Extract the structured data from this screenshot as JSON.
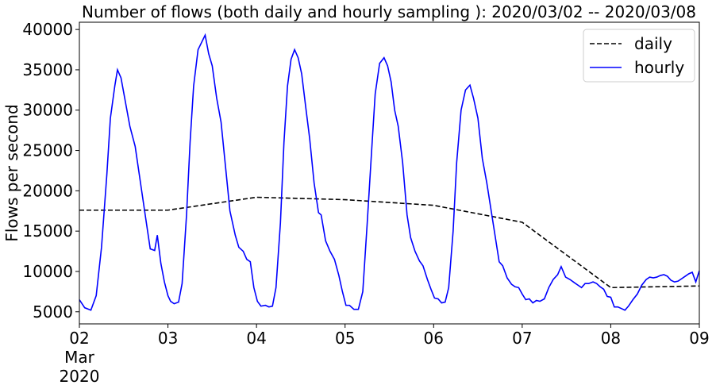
{
  "chart_data": {
    "type": "line",
    "title": "Number of flows (both daily and hourly sampling ): 2020/03/02 -- 2020/03/08",
    "y_label": "Flows per second",
    "xlim": [
      2,
      9
    ],
    "xticks": [
      {
        "value": 2,
        "label": "02"
      },
      {
        "value": 3,
        "label": "03"
      },
      {
        "value": 4,
        "label": "04"
      },
      {
        "value": 5,
        "label": "05"
      },
      {
        "value": 6,
        "label": "06"
      },
      {
        "value": 7,
        "label": "07"
      },
      {
        "value": 8,
        "label": "08"
      },
      {
        "value": 9,
        "label": "09"
      }
    ],
    "xtick_sublabels": [
      "Mar",
      "2020"
    ],
    "ylim": [
      3500,
      40900
    ],
    "yticks": [
      5000,
      10000,
      15000,
      20000,
      25000,
      30000,
      35000,
      40000
    ],
    "legend": "upper right",
    "series": [
      {
        "name": "daily",
        "color": "#000000",
        "linestyle": "dashed",
        "x": [
          2,
          3,
          4,
          5,
          6,
          7,
          8,
          9
        ],
        "values": [
          17600,
          17600,
          19200,
          18900,
          18200,
          16100,
          8000,
          8200
        ]
      },
      {
        "name": "hourly",
        "color": "#0000ff",
        "linestyle": "solid",
        "x": [
          2.0,
          2.06,
          2.13,
          2.19,
          2.25,
          2.31,
          2.35,
          2.4,
          2.43,
          2.47,
          2.52,
          2.57,
          2.63,
          2.69,
          2.75,
          2.8,
          2.85,
          2.88,
          2.92,
          2.96,
          3.0,
          3.03,
          3.07,
          3.12,
          3.16,
          3.21,
          3.25,
          3.29,
          3.34,
          3.42,
          3.46,
          3.5,
          3.55,
          3.6,
          3.65,
          3.7,
          3.76,
          3.8,
          3.85,
          3.89,
          3.93,
          3.97,
          4.01,
          4.05,
          4.1,
          4.14,
          4.18,
          4.22,
          4.27,
          4.31,
          4.35,
          4.39,
          4.43,
          4.47,
          4.51,
          4.56,
          4.6,
          4.65,
          4.7,
          4.73,
          4.78,
          4.83,
          4.88,
          4.93,
          4.97,
          5.01,
          5.05,
          5.1,
          5.15,
          5.2,
          5.25,
          5.3,
          5.34,
          5.39,
          5.44,
          5.48,
          5.52,
          5.56,
          5.6,
          5.65,
          5.7,
          5.74,
          5.79,
          5.84,
          5.88,
          5.93,
          5.97,
          6.01,
          6.05,
          6.09,
          6.13,
          6.17,
          6.22,
          6.26,
          6.31,
          6.36,
          6.41,
          6.45,
          6.5,
          6.55,
          6.6,
          6.65,
          6.7,
          6.74,
          6.78,
          6.83,
          6.88,
          6.92,
          6.96,
          7.0,
          7.04,
          7.08,
          7.12,
          7.16,
          7.2,
          7.25,
          7.3,
          7.35,
          7.4,
          7.44,
          7.49,
          7.54,
          7.59,
          7.63,
          7.67,
          7.71,
          7.75,
          7.8,
          7.84,
          7.88,
          7.92,
          7.96,
          8.0,
          8.04,
          8.08,
          8.12,
          8.16,
          8.2,
          8.25,
          8.3,
          8.35,
          8.4,
          8.44,
          8.48,
          8.52,
          8.56,
          8.6,
          8.64,
          8.68,
          8.72,
          8.76,
          8.8,
          8.84,
          8.88,
          8.92,
          8.96,
          9.0
        ],
        "values": [
          6500,
          5500,
          5200,
          7000,
          13000,
          22000,
          29000,
          33000,
          35000,
          34000,
          31000,
          28000,
          25500,
          21000,
          16500,
          12800,
          12600,
          14500,
          11000,
          8700,
          7000,
          6300,
          6000,
          6200,
          8500,
          17000,
          26000,
          33000,
          37500,
          39300,
          37000,
          35500,
          31500,
          28500,
          23000,
          17500,
          14500,
          13000,
          12500,
          11500,
          11200,
          8000,
          6300,
          5700,
          5800,
          5600,
          5700,
          8000,
          16000,
          26000,
          33000,
          36300,
          37500,
          36500,
          34500,
          30000,
          26500,
          21000,
          17300,
          17000,
          13800,
          12500,
          11500,
          9500,
          7500,
          5800,
          5800,
          5300,
          5300,
          7500,
          16000,
          25000,
          32000,
          35800,
          36500,
          35500,
          33500,
          30000,
          28000,
          23500,
          17000,
          14200,
          12500,
          11300,
          10700,
          9000,
          7800,
          6700,
          6600,
          6100,
          6200,
          8000,
          15000,
          23500,
          30000,
          32500,
          33100,
          31500,
          29000,
          24000,
          21000,
          17500,
          14000,
          11200,
          10700,
          9200,
          8400,
          8100,
          8000,
          7200,
          6500,
          6600,
          6100,
          6400,
          6300,
          6600,
          8000,
          9000,
          9600,
          10600,
          9300,
          9000,
          8600,
          8300,
          8000,
          8500,
          8500,
          8700,
          8500,
          8100,
          7800,
          6900,
          6800,
          5600,
          5600,
          5400,
          5200,
          5700,
          6500,
          7200,
          8300,
          9000,
          9300,
          9200,
          9300,
          9500,
          9600,
          9400,
          8900,
          8700,
          8800,
          9100,
          9400,
          9700,
          9900,
          8700,
          10100
        ]
      }
    ]
  }
}
